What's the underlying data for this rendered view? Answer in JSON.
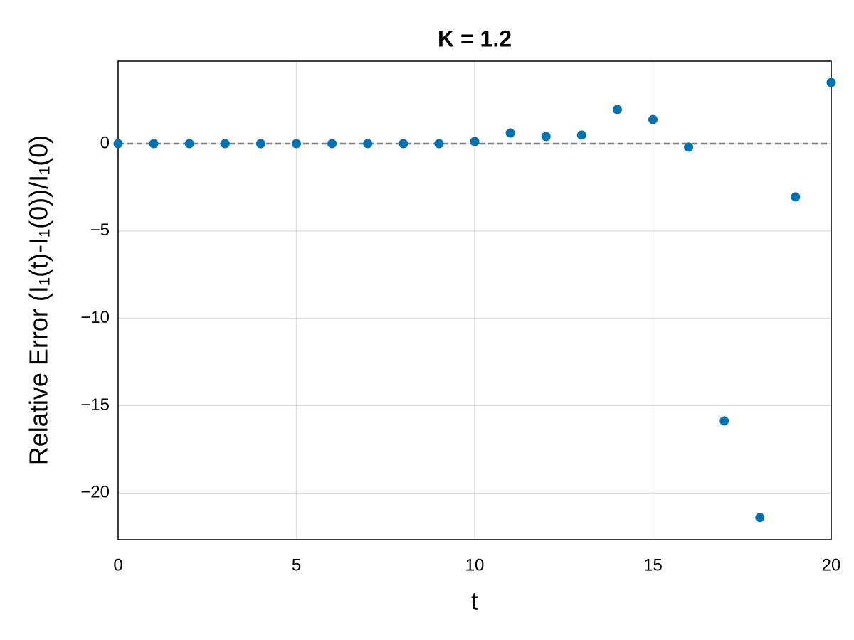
{
  "chart_data": {
    "type": "scatter",
    "title": "K = 1.2",
    "x_label": "t",
    "y_label": "Relative Error (I₁(t)-I₁(0))/I₁(0)",
    "x": [
      0,
      1,
      2,
      3,
      4,
      5,
      6,
      7,
      8,
      9,
      10,
      11,
      12,
      13,
      14,
      15,
      16,
      17,
      18,
      19,
      20
    ],
    "series": [
      {
        "color": "#0072b2",
        "values": [
          0,
          0,
          0,
          0,
          0,
          0,
          0,
          0,
          0,
          0,
          0.12,
          0.61,
          0.41,
          0.49,
          1.95,
          1.38,
          -0.2,
          -15.87,
          -21.4,
          -3.05,
          3.5
        ]
      }
    ],
    "hline": 0,
    "xlim": [
      0,
      20
    ],
    "xticks": [
      0,
      5,
      10,
      15,
      20
    ],
    "ylim": [
      -22.67,
      4.72
    ],
    "yticks": [
      {
        "value": -20,
        "label": "−20"
      },
      {
        "value": -15,
        "label": "−15"
      },
      {
        "value": -10,
        "label": "−10"
      },
      {
        "value": -5,
        "label": "−5"
      },
      0
    ],
    "grid": true
  }
}
